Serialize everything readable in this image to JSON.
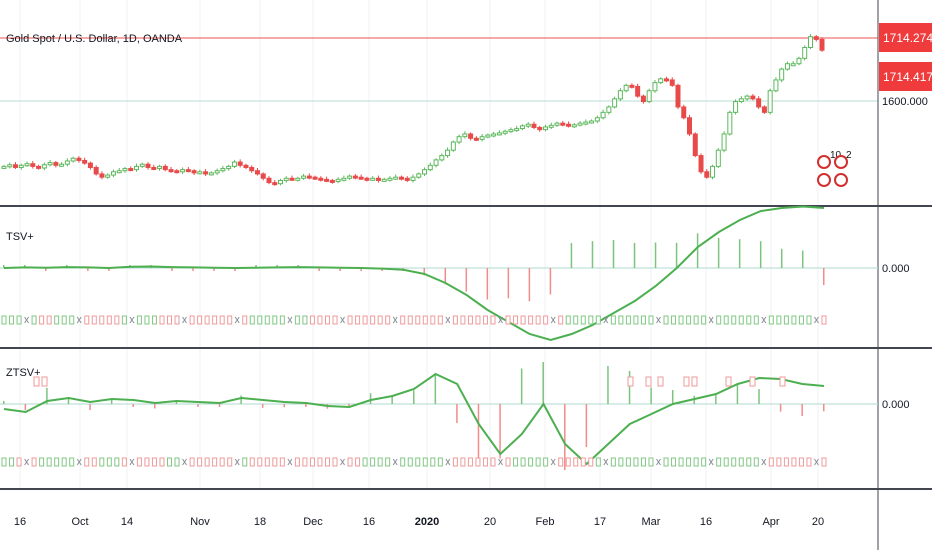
{
  "header": {
    "symbol_title": "Gold Spot / U.S. Dollar, 1D, OANDA"
  },
  "price_axis": {
    "last_price": "1714.274",
    "second_price": "1714.417",
    "ref_level": "1600.000"
  },
  "panes": [
    {
      "label": "TSV+",
      "zero_label": "0.000"
    },
    {
      "label": "ZTSV+",
      "zero_label": "0.000"
    }
  ],
  "event_badges": [
    {
      "count": "10",
      "icon": "us-flag-icon"
    },
    {
      "count": "2",
      "icon": "us-flag-icon"
    }
  ],
  "colors": {
    "up": "#5cb85c",
    "down": "#e84a4a",
    "line": "#4caf50",
    "price_tag": "#ef3b3b",
    "separator": "#434651"
  },
  "chart_data": [
    {
      "type": "candlestick",
      "title": "Gold Spot / U.S. Dollar, 1D, OANDA",
      "x": [
        "16",
        "Oct",
        "14",
        "Nov",
        "18",
        "Dec",
        "16",
        "2020",
        "20",
        "Feb",
        "17",
        "Mar",
        "16",
        "Apr",
        "20"
      ],
      "closes": [
        1500,
        1503,
        1498,
        1502,
        1505,
        1500,
        1497,
        1503,
        1507,
        1502,
        1504,
        1510,
        1515,
        1511,
        1506,
        1498,
        1486,
        1480,
        1484,
        1490,
        1492,
        1496,
        1494,
        1500,
        1504,
        1498,
        1496,
        1500,
        1494,
        1492,
        1490,
        1494,
        1492,
        1488,
        1490,
        1486,
        1488,
        1492,
        1496,
        1500,
        1508,
        1502,
        1498,
        1492,
        1486,
        1478,
        1470,
        1468,
        1474,
        1478,
        1476,
        1478,
        1482,
        1480,
        1478,
        1476,
        1474,
        1472,
        1476,
        1478,
        1482,
        1480,
        1478,
        1476,
        1478,
        1474,
        1476,
        1478,
        1480,
        1478,
        1474,
        1480,
        1486,
        1494,
        1502,
        1512,
        1520,
        1530,
        1545,
        1555,
        1560,
        1552,
        1550,
        1555,
        1558,
        1560,
        1562,
        1565,
        1568,
        1570,
        1575,
        1578,
        1572,
        1568,
        1573,
        1576,
        1580,
        1578,
        1575,
        1577,
        1580,
        1582,
        1584,
        1590,
        1600,
        1610,
        1625,
        1640,
        1650,
        1648,
        1630,
        1620,
        1640,
        1655,
        1662,
        1660,
        1650,
        1610,
        1590,
        1560,
        1520,
        1490,
        1480,
        1500,
        1530,
        1560,
        1600,
        1620,
        1625,
        1630,
        1625,
        1610,
        1600,
        1640,
        1660,
        1680,
        1690,
        1690,
        1700,
        1720,
        1740,
        1735,
        1715
      ]
    },
    {
      "type": "bar+line",
      "title": "TSV+",
      "series": [
        {
          "name": "TSV+",
          "values": [
            0,
            0.2,
            0.1,
            0.3,
            0.2,
            0,
            0.4,
            0.5,
            0.3,
            0.2,
            0.1,
            0,
            0.1,
            0.2,
            0.3,
            0.2,
            0.1,
            0,
            -0.2,
            -0.6,
            -2,
            -5,
            -9,
            -14,
            -18,
            -22,
            -24,
            -22,
            -19,
            -15,
            -11,
            -6,
            0,
            7,
            12,
            16,
            19,
            20,
            20.5,
            20
          ]
        }
      ],
      "zero": 0
    },
    {
      "type": "bar+line",
      "title": "ZTSV+",
      "series": [
        {
          "name": "ZTSV+",
          "values": [
            -0.5,
            -0.8,
            0.3,
            0.6,
            0.2,
            0.5,
            0.4,
            0.1,
            0.3,
            0.2,
            0.1,
            0.6,
            0.4,
            0.2,
            0.1,
            -0.2,
            -0.3,
            0.4,
            0.8,
            1.5,
            3,
            2,
            -2,
            -5,
            -3,
            0,
            -4,
            -6,
            -4,
            -2,
            -1,
            0,
            0.5,
            1,
            2,
            2.6,
            2.5,
            2,
            1.8
          ]
        }
      ],
      "zero": 0
    }
  ]
}
